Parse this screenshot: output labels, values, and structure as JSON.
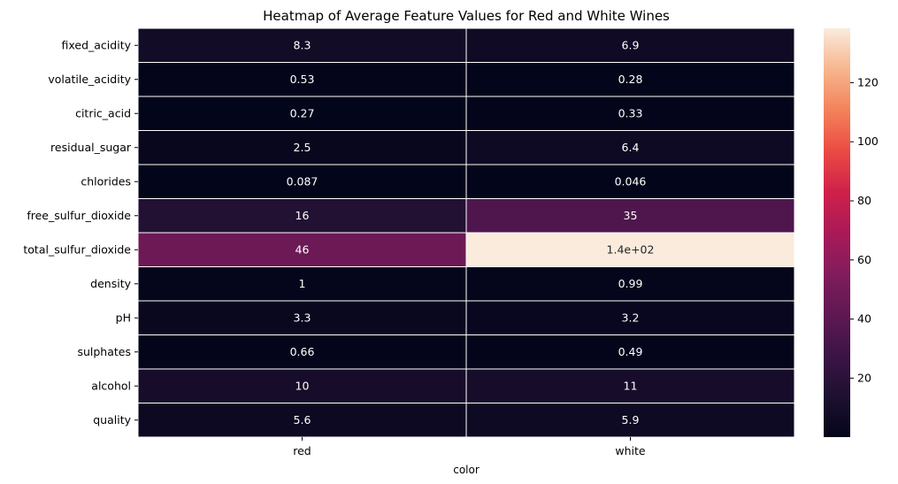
{
  "chart_data": {
    "type": "heatmap",
    "title": "Heatmap of Average Feature Values for Red and White Wines",
    "xlabel": "color",
    "ylabel": "",
    "columns": [
      "red",
      "white"
    ],
    "rows": [
      "fixed_acidity",
      "volatile_acidity",
      "citric_acid",
      "residual_sugar",
      "chlorides",
      "free_sulfur_dioxide",
      "total_sulfur_dioxide",
      "density",
      "pH",
      "sulphates",
      "alcohol",
      "quality"
    ],
    "values": [
      [
        8.32,
        6.85
      ],
      [
        0.528,
        0.278
      ],
      [
        0.271,
        0.334
      ],
      [
        2.54,
        6.39
      ],
      [
        0.0875,
        0.0458
      ],
      [
        15.9,
        35.3
      ],
      [
        46.5,
        138.4
      ],
      [
        0.9967,
        0.994
      ],
      [
        3.31,
        3.19
      ],
      [
        0.658,
        0.49
      ],
      [
        10.4,
        10.5
      ],
      [
        5.64,
        5.88
      ]
    ],
    "cell_labels": [
      [
        "8.3",
        "6.9"
      ],
      [
        "0.53",
        "0.28"
      ],
      [
        "0.27",
        "0.33"
      ],
      [
        "2.5",
        "6.4"
      ],
      [
        "0.087",
        "0.046"
      ],
      [
        "16",
        "35"
      ],
      [
        "46",
        "1.4e+02"
      ],
      [
        "1",
        "0.99"
      ],
      [
        "3.3",
        "3.2"
      ],
      [
        "0.66",
        "0.49"
      ],
      [
        "10",
        "11"
      ],
      [
        "5.6",
        "5.9"
      ]
    ],
    "colorbar": {
      "min": 0.0458,
      "max": 138.4,
      "ticks": [
        20,
        40,
        60,
        80,
        100,
        120
      ],
      "tick_labels": [
        "20",
        "40",
        "60",
        "80",
        "100",
        "120"
      ],
      "colormap": "rocket"
    },
    "grid": true
  }
}
